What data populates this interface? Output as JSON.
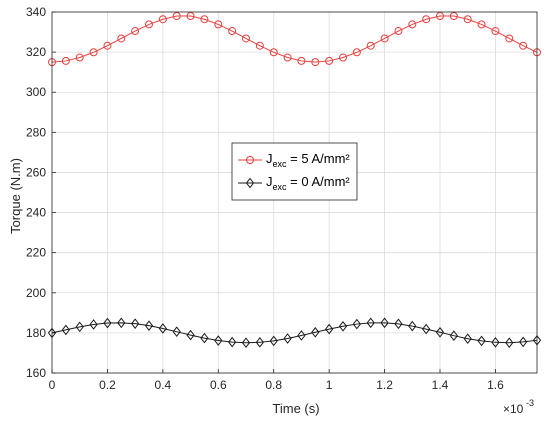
{
  "chart_data": {
    "type": "line",
    "xlabel": "Time (s)",
    "ylabel": "Torque (N.m)",
    "x_exponent_label": "×10",
    "x_exponent_power": "-3",
    "xlim": [
      0,
      1.75
    ],
    "ylim": [
      160,
      340
    ],
    "x_ticks": [
      "0",
      "0.2",
      "0.4",
      "0.6",
      "0.8",
      "1",
      "1.2",
      "1.4",
      "1.6"
    ],
    "y_ticks": [
      "160",
      "180",
      "200",
      "220",
      "240",
      "260",
      "280",
      "300",
      "320",
      "340"
    ],
    "grid": true,
    "legend_position": "center",
    "x": [
      0,
      0.05,
      0.1,
      0.15,
      0.2,
      0.25,
      0.3,
      0.35,
      0.4,
      0.45,
      0.5,
      0.55,
      0.6,
      0.65,
      0.7,
      0.75,
      0.8,
      0.85,
      0.9,
      0.95,
      1.0,
      1.05,
      1.1,
      1.15,
      1.2,
      1.25,
      1.3,
      1.35,
      1.4,
      1.45,
      1.5,
      1.55,
      1.6,
      1.65,
      1.7,
      1.75
    ],
    "series": [
      {
        "name": "J",
        "name_sub": "exc",
        "name_suffix": " = 5 A/mm²",
        "color": "#e8413f",
        "marker": "circle",
        "values": [
          315.0,
          315.6,
          317.3,
          319.9,
          323.2,
          326.8,
          330.5,
          333.8,
          336.4,
          338.0,
          338.0,
          336.4,
          333.8,
          330.5,
          326.8,
          323.2,
          319.9,
          317.3,
          315.6,
          315.0,
          315.6,
          317.3,
          319.9,
          323.2,
          326.8,
          330.5,
          333.8,
          336.4,
          338.0,
          338.0,
          336.4,
          333.8,
          330.5,
          326.8,
          323.2,
          319.9
        ]
      },
      {
        "name": "J",
        "name_sub": "exc",
        "name_suffix": " = 0 A/mm²",
        "color": "#1a1a1a",
        "marker": "diamond",
        "values": [
          180.0,
          181.5,
          183.0,
          184.2,
          184.9,
          185.0,
          184.6,
          183.6,
          182.2,
          180.6,
          178.9,
          177.4,
          176.2,
          175.4,
          175.1,
          175.3,
          176.0,
          177.2,
          178.7,
          180.3,
          181.9,
          183.3,
          184.4,
          185.0,
          185.0,
          184.5,
          183.4,
          181.9,
          180.3,
          178.6,
          177.1,
          176.0,
          175.3,
          175.1,
          175.5,
          176.3
        ]
      }
    ]
  }
}
